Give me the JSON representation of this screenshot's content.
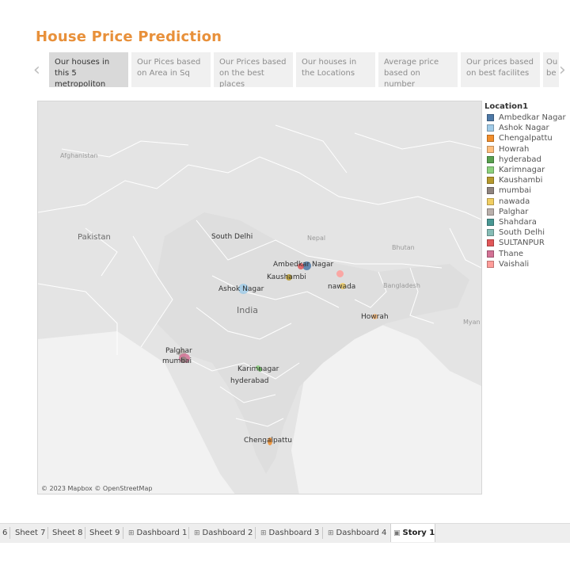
{
  "dashboard_title": "House Price Prediction",
  "story": {
    "prev_icon": "chevron-left-icon",
    "next_icon": "chevron-right-icon",
    "points": [
      {
        "label": "Our houses in this 5 metropoliton",
        "active": true
      },
      {
        "label": "Our Pices based on Area in Sq",
        "active": false
      },
      {
        "label": "Our Prices based on the best places",
        "active": false
      },
      {
        "label": "Our houses in the Locations",
        "active": false
      },
      {
        "label": "Average price based on number",
        "active": false
      },
      {
        "label": "Our prices based on best facilites",
        "active": false
      },
      {
        "label": "Ou be",
        "active": false
      }
    ]
  },
  "map": {
    "attribution": "© 2023 Mapbox © OpenStreetMap",
    "background_labels": [
      {
        "text": "Afghanistan",
        "class": "small"
      },
      {
        "text": "Pakistan",
        "class": "country"
      },
      {
        "text": "Nepal",
        "class": "small"
      },
      {
        "text": "Bhutan",
        "class": "small"
      },
      {
        "text": "Bangladesh",
        "class": "small"
      },
      {
        "text": "India",
        "class": "big"
      },
      {
        "text": "Myan",
        "class": "small"
      }
    ],
    "city_labels": [
      "South Delhi",
      "Ambedkar Nagar",
      "Kaushambi",
      "Ashok Nagar",
      "nawada",
      "Howrah",
      "Palghar",
      "mumbai",
      "Karimnagar",
      "hyderabad",
      "Chengalpattu"
    ]
  },
  "legend": {
    "title": "Location1",
    "items": [
      {
        "label": "Ambedkar Nagar",
        "color": "#4e79a7"
      },
      {
        "label": "Ashok Nagar",
        "color": "#a0cbe8"
      },
      {
        "label": "Chengalpattu",
        "color": "#f28e2b"
      },
      {
        "label": "Howrah",
        "color": "#ffbe7d"
      },
      {
        "label": "hyderabad",
        "color": "#59a14f"
      },
      {
        "label": "Karimnagar",
        "color": "#8cd17d"
      },
      {
        "label": "Kaushambi",
        "color": "#b6992d"
      },
      {
        "label": "mumbai",
        "color": "#8f8480"
      },
      {
        "label": "nawada",
        "color": "#f1ce63"
      },
      {
        "label": "Palghar",
        "color": "#bab0ac"
      },
      {
        "label": "Shahdara",
        "color": "#499894"
      },
      {
        "label": "South Delhi",
        "color": "#86bcb6"
      },
      {
        "label": "SULTANPUR",
        "color": "#e15759"
      },
      {
        "label": "Thane",
        "color": "#d37295"
      },
      {
        "label": "Vaishali",
        "color": "#ff9d9a"
      }
    ]
  },
  "tabs": [
    {
      "label": "6",
      "icon": "",
      "active": false
    },
    {
      "label": "Sheet 7",
      "icon": "",
      "active": false
    },
    {
      "label": "Sheet 8",
      "icon": "",
      "active": false
    },
    {
      "label": "Sheet 9",
      "icon": "",
      "active": false
    },
    {
      "label": "Dashboard 1",
      "icon": "dashboard-icon",
      "active": false
    },
    {
      "label": "Dashboard 2",
      "icon": "dashboard-icon",
      "active": false
    },
    {
      "label": "Dashboard 3",
      "icon": "dashboard-icon",
      "active": false
    },
    {
      "label": "Dashboard 4",
      "icon": "dashboard-icon",
      "active": false
    },
    {
      "label": "Story 1",
      "icon": "story-icon",
      "active": true
    }
  ]
}
